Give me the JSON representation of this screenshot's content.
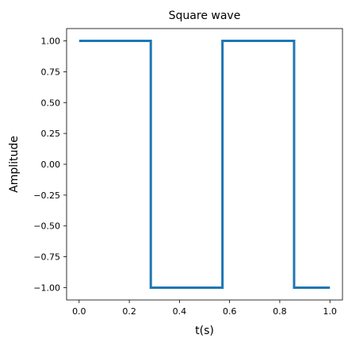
{
  "chart_data": {
    "type": "line",
    "title": "Square wave",
    "xlabel": "t(s)",
    "ylabel": "Amplitude",
    "xlim": [
      -0.05,
      1.05
    ],
    "ylim": [
      -1.1,
      1.1
    ],
    "grid": false,
    "xticks": [
      0.0,
      0.2,
      0.4,
      0.6,
      0.8,
      1.0
    ],
    "xtick_labels": [
      "0.0",
      "0.2",
      "0.4",
      "0.6",
      "0.8",
      "1.0"
    ],
    "yticks": [
      1.0,
      0.75,
      0.5,
      0.25,
      0.0,
      -0.25,
      -0.5,
      -0.75,
      -1.0
    ],
    "ytick_labels": [
      "1.00",
      "0.75",
      "0.50",
      "0.25",
      "0.00",
      "−0.25",
      "−0.50",
      "−0.75",
      "−1.00"
    ],
    "series": [
      {
        "color": "#1f77b4",
        "x": [
          0.0,
          0.2857,
          0.2857,
          0.5714,
          0.5714,
          0.8571,
          0.8571,
          1.0
        ],
        "y": [
          1.0,
          1.0,
          -1.0,
          -1.0,
          1.0,
          1.0,
          -1.0,
          -1.0
        ]
      }
    ]
  }
}
